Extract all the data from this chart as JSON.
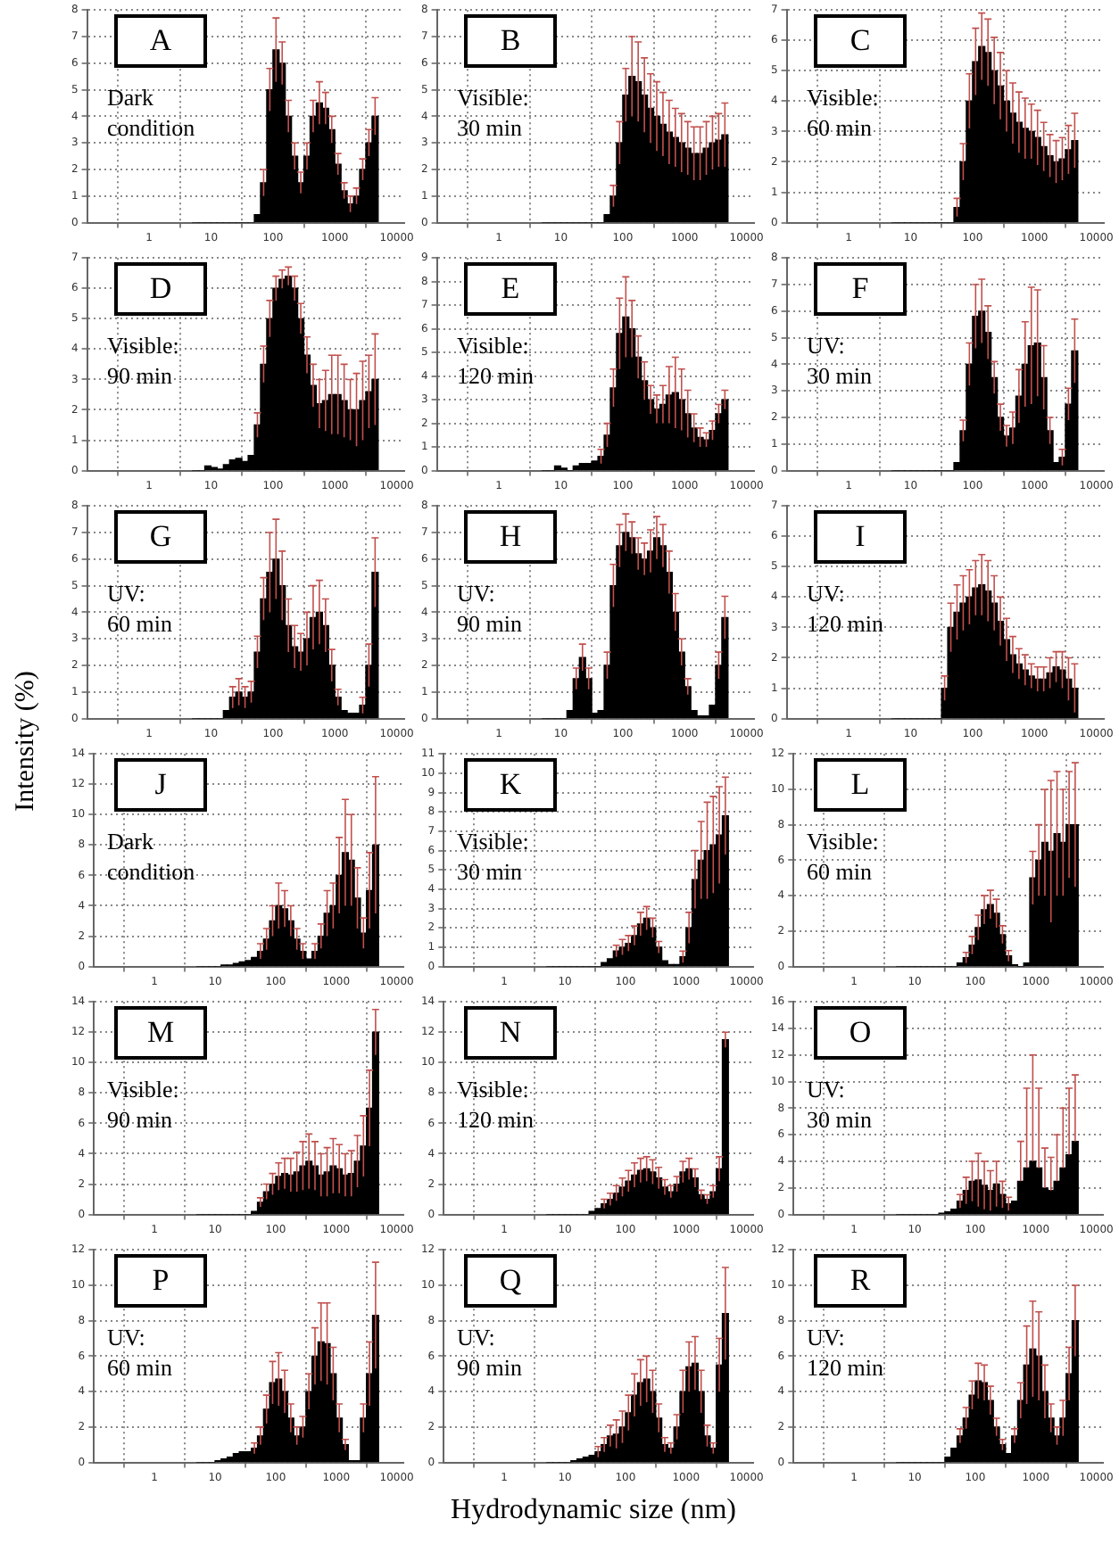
{
  "chart_data": [
    {
      "type": "histogram",
      "title": "A",
      "annotations": [
        "Dark\ncondition"
      ],
      "log": "x",
      "grid": true,
      "color": "#000000",
      "xlim": [
        0.1,
        13000
      ],
      "xticks": [
        1,
        10,
        100,
        1000,
        10000
      ],
      "ylim": [
        0,
        8
      ],
      "yticks": [
        0,
        1,
        2,
        3,
        4,
        5,
        6,
        7,
        8
      ],
      "bins": [
        5.01,
        6.31,
        7.94,
        10,
        12.6,
        15.8,
        20,
        25.1,
        31.6,
        39.8,
        50.1,
        63.1,
        79.4,
        100,
        126,
        158,
        200,
        251,
        316,
        398,
        501,
        631,
        794,
        1000,
        1259,
        1585,
        1995,
        2512,
        3162,
        3981,
        5012
      ],
      "values": [
        0,
        0,
        0,
        0,
        0,
        0,
        0,
        0,
        0,
        0,
        0.3,
        1.5,
        5,
        6.5,
        6,
        4,
        2.5,
        1.5,
        2.5,
        4,
        4.5,
        4.3,
        3.5,
        2.2,
        1.2,
        0.7,
        1,
        2,
        3,
        4
      ],
      "errors": [
        null,
        null,
        null,
        null,
        null,
        null,
        null,
        null,
        null,
        null,
        null,
        0.5,
        0.8,
        1.2,
        0.8,
        0.6,
        0.5,
        0.4,
        0.5,
        0.6,
        0.8,
        0.6,
        0.5,
        0.4,
        0.3,
        0.3,
        0.3,
        0.4,
        0.5,
        0.7
      ]
    },
    {
      "type": "histogram",
      "title": "B",
      "annotations": [
        "Visible:\n30 min"
      ],
      "log": "x",
      "grid": true,
      "color": "#000000",
      "xlim": [
        0.1,
        13000
      ],
      "xticks": [
        1,
        10,
        100,
        1000,
        10000
      ],
      "ylim": [
        0,
        8
      ],
      "yticks": [
        0,
        1,
        2,
        3,
        4,
        5,
        6,
        7,
        8
      ],
      "bins": [
        5.01,
        6.31,
        7.94,
        10,
        12.6,
        15.8,
        20,
        25.1,
        31.6,
        39.8,
        50.1,
        63.1,
        79.4,
        100,
        126,
        158,
        200,
        251,
        316,
        398,
        501,
        631,
        794,
        1000,
        1259,
        1585,
        1995,
        2512,
        3162,
        3981,
        5012
      ],
      "values": [
        0,
        0,
        0,
        0,
        0,
        0,
        0,
        0,
        0,
        0,
        0.3,
        1,
        3,
        4.8,
        5.5,
        5.3,
        4.8,
        4.3,
        4,
        3.7,
        3.4,
        3.2,
        3,
        2.8,
        2.6,
        2.6,
        2.8,
        3,
        3.1,
        3.3
      ],
      "errors": [
        null,
        null,
        null,
        null,
        null,
        null,
        null,
        null,
        null,
        null,
        null,
        0.4,
        0.8,
        1,
        1.5,
        1.5,
        1.4,
        1.3,
        1.3,
        1.2,
        1.2,
        1.1,
        1.1,
        1,
        1,
        1,
        1,
        1,
        1,
        1.2
      ]
    },
    {
      "type": "histogram",
      "title": "C",
      "annotations": [
        "Visible:\n60 min"
      ],
      "log": "x",
      "grid": true,
      "color": "#000000",
      "xlim": [
        0.1,
        13000
      ],
      "xticks": [
        1,
        10,
        100,
        1000,
        10000
      ],
      "ylim": [
        0,
        7
      ],
      "yticks": [
        0,
        1,
        2,
        3,
        4,
        5,
        6,
        7
      ],
      "bins": [
        5.01,
        6.31,
        7.94,
        10,
        12.6,
        15.8,
        20,
        25.1,
        31.6,
        39.8,
        50.1,
        63.1,
        79.4,
        100,
        126,
        158,
        200,
        251,
        316,
        398,
        501,
        631,
        794,
        1000,
        1259,
        1585,
        1995,
        2512,
        3162,
        3981,
        5012
      ],
      "values": [
        0,
        0,
        0,
        0,
        0,
        0,
        0,
        0,
        0,
        0,
        0.5,
        2,
        4,
        5.3,
        5.8,
        5.6,
        5,
        4.5,
        4,
        3.6,
        3.3,
        3.1,
        3,
        2.8,
        2.5,
        2.2,
        2,
        2.1,
        2.4,
        2.7
      ],
      "errors": [
        null,
        null,
        null,
        null,
        null,
        null,
        null,
        null,
        null,
        null,
        0.3,
        0.6,
        0.9,
        1.1,
        1.1,
        1.1,
        1.1,
        1.1,
        1,
        1,
        1,
        1,
        0.9,
        0.9,
        0.8,
        0.7,
        0.7,
        0.7,
        0.8,
        0.9
      ]
    },
    {
      "type": "histogram",
      "title": "D",
      "annotations": [
        "Visible:\n90 min"
      ],
      "log": "x",
      "grid": true,
      "color": "#000000",
      "xlim": [
        0.1,
        13000
      ],
      "xticks": [
        1,
        10,
        100,
        1000,
        10000
      ],
      "ylim": [
        0,
        7
      ],
      "yticks": [
        0,
        1,
        2,
        3,
        4,
        5,
        6,
        7
      ],
      "bins": [
        5.01,
        6.31,
        7.94,
        10,
        12.6,
        15.8,
        20,
        25.1,
        31.6,
        39.8,
        50.1,
        63.1,
        79.4,
        100,
        126,
        158,
        200,
        251,
        316,
        398,
        501,
        631,
        794,
        1000,
        1259,
        1585,
        1995,
        2512,
        3162,
        3981,
        5012
      ],
      "values": [
        0,
        0,
        0.15,
        0.1,
        0.05,
        0.2,
        0.35,
        0.4,
        0.3,
        0.5,
        1.5,
        3.5,
        5,
        6,
        6.3,
        6.4,
        6,
        5,
        3.8,
        2.8,
        2.2,
        2.3,
        2.5,
        2.5,
        2.3,
        2,
        2,
        2.3,
        2.6,
        3
      ],
      "errors": [
        null,
        null,
        null,
        null,
        null,
        null,
        null,
        null,
        null,
        null,
        0.4,
        0.6,
        0.6,
        0.4,
        0.3,
        0.3,
        0.4,
        0.5,
        0.6,
        0.7,
        0.8,
        1,
        1.3,
        1.3,
        1.2,
        1,
        1.2,
        1.3,
        1.2,
        1.5
      ]
    },
    {
      "type": "histogram",
      "title": "E",
      "annotations": [
        "Visible:\n120 min"
      ],
      "log": "x",
      "grid": true,
      "color": "#000000",
      "xlim": [
        0.1,
        13000
      ],
      "xticks": [
        1,
        10,
        100,
        1000,
        10000
      ],
      "ylim": [
        0,
        9
      ],
      "yticks": [
        0,
        1,
        2,
        3,
        4,
        5,
        6,
        7,
        8,
        9
      ],
      "bins": [
        5.01,
        6.31,
        7.94,
        10,
        12.6,
        15.8,
        20,
        25.1,
        31.6,
        39.8,
        50.1,
        63.1,
        79.4,
        100,
        126,
        158,
        200,
        251,
        316,
        398,
        501,
        631,
        794,
        1000,
        1259,
        1585,
        1995,
        2512,
        3162,
        3981,
        5012
      ],
      "values": [
        0,
        0,
        0.2,
        0.1,
        0,
        0.2,
        0.3,
        0.3,
        0.4,
        0.6,
        1.5,
        3.5,
        5.8,
        6.5,
        6,
        4.8,
        3.8,
        3,
        2.6,
        2.8,
        3.2,
        3.3,
        3,
        2.4,
        1.8,
        1.4,
        1.3,
        1.7,
        2.4,
        3
      ],
      "errors": [
        null,
        null,
        null,
        null,
        null,
        null,
        null,
        null,
        null,
        0.3,
        0.5,
        0.8,
        1.5,
        1.7,
        1.2,
        0.9,
        0.8,
        0.6,
        0.6,
        0.8,
        1.2,
        1.5,
        1.3,
        1,
        0.6,
        0.4,
        0.3,
        0.4,
        0.4,
        0.4
      ]
    },
    {
      "type": "histogram",
      "title": "F",
      "annotations": [
        "UV:\n30 min"
      ],
      "log": "x",
      "grid": true,
      "color": "#000000",
      "xlim": [
        0.1,
        13000
      ],
      "xticks": [
        1,
        10,
        100,
        1000,
        10000
      ],
      "ylim": [
        0,
        8
      ],
      "yticks": [
        0,
        1,
        2,
        3,
        4,
        5,
        6,
        7,
        8
      ],
      "bins": [
        5.01,
        6.31,
        7.94,
        10,
        12.6,
        15.8,
        20,
        25.1,
        31.6,
        39.8,
        50.1,
        63.1,
        79.4,
        100,
        126,
        158,
        200,
        251,
        316,
        398,
        501,
        631,
        794,
        1000,
        1259,
        1585,
        1995,
        2512,
        3162,
        3981,
        5012
      ],
      "values": [
        0,
        0,
        0,
        0,
        0,
        0,
        0,
        0,
        0,
        0,
        0.3,
        1.5,
        4,
        5.8,
        6,
        5.2,
        3.5,
        2,
        1.3,
        1.6,
        2.8,
        4,
        4.7,
        4.8,
        3.5,
        1.5,
        0.3,
        0.5,
        2.5,
        4.5
      ],
      "errors": [
        null,
        null,
        null,
        null,
        null,
        null,
        null,
        null,
        null,
        null,
        null,
        0.4,
        0.8,
        1.2,
        1.2,
        1,
        0.6,
        0.5,
        0.4,
        0.6,
        1,
        1.6,
        2.2,
        2,
        1.2,
        0.5,
        null,
        0.3,
        0.6,
        1.2
      ]
    },
    {
      "type": "histogram",
      "title": "G",
      "annotations": [
        "UV:\n60 min"
      ],
      "log": "x",
      "grid": true,
      "color": "#000000",
      "xlim": [
        0.1,
        13000
      ],
      "xticks": [
        1,
        10,
        100,
        1000,
        10000
      ],
      "ylim": [
        0,
        8
      ],
      "yticks": [
        0,
        1,
        2,
        3,
        4,
        5,
        6,
        7,
        8
      ],
      "bins": [
        5.01,
        6.31,
        7.94,
        10,
        12.6,
        15.8,
        20,
        25.1,
        31.6,
        39.8,
        50.1,
        63.1,
        79.4,
        100,
        126,
        158,
        200,
        251,
        316,
        398,
        501,
        631,
        794,
        1000,
        1259,
        1585,
        1995,
        2512,
        3162,
        3981,
        5012
      ],
      "values": [
        0,
        0,
        0,
        0,
        0,
        0.3,
        0.8,
        1,
        0.8,
        1,
        2.5,
        4.5,
        5.5,
        6,
        5,
        3.5,
        2.7,
        2.5,
        3,
        3.8,
        4,
        3.5,
        2,
        0.8,
        0.3,
        0.2,
        0.2,
        0.5,
        2,
        5.5
      ],
      "errors": [
        null,
        null,
        null,
        null,
        null,
        null,
        0.4,
        0.5,
        0.4,
        0.4,
        0.6,
        0.8,
        1.5,
        1.5,
        1.3,
        1,
        0.8,
        0.7,
        1,
        1.2,
        1.2,
        1,
        0.6,
        0.3,
        null,
        null,
        null,
        0.3,
        0.8,
        1.3
      ]
    },
    {
      "type": "histogram",
      "title": "H",
      "annotations": [
        "UV:\n90 min"
      ],
      "log": "x",
      "grid": true,
      "color": "#000000",
      "xlim": [
        0.1,
        13000
      ],
      "xticks": [
        1,
        10,
        100,
        1000,
        10000
      ],
      "ylim": [
        0,
        8
      ],
      "yticks": [
        0,
        1,
        2,
        3,
        4,
        5,
        6,
        7,
        8
      ],
      "bins": [
        5.01,
        6.31,
        7.94,
        10,
        12.6,
        15.8,
        20,
        25.1,
        31.6,
        39.8,
        50.1,
        63.1,
        79.4,
        100,
        126,
        158,
        200,
        251,
        316,
        398,
        501,
        631,
        794,
        1000,
        1259,
        1585,
        1995,
        2512,
        3162,
        3981,
        5012
      ],
      "values": [
        0,
        0,
        0,
        0,
        0.3,
        1.5,
        2.3,
        1.5,
        0.2,
        0.3,
        2,
        5,
        6.5,
        7,
        6.8,
        6.2,
        6,
        6.3,
        6.8,
        6.5,
        5.5,
        4,
        2.5,
        1.2,
        0.3,
        0.1,
        0.1,
        0.5,
        2,
        3.8
      ],
      "errors": [
        null,
        null,
        null,
        null,
        null,
        0.4,
        0.5,
        0.4,
        null,
        null,
        0.5,
        0.8,
        0.8,
        0.7,
        0.6,
        0.6,
        0.6,
        0.8,
        0.8,
        0.8,
        0.8,
        0.7,
        0.5,
        0.3,
        null,
        null,
        null,
        null,
        0.5,
        0.8
      ]
    },
    {
      "type": "histogram",
      "title": "I",
      "annotations": [
        "UV:\n120 min"
      ],
      "log": "x",
      "grid": true,
      "color": "#000000",
      "xlim": [
        0.1,
        13000
      ],
      "xticks": [
        1,
        10,
        100,
        1000,
        10000
      ],
      "ylim": [
        0,
        7
      ],
      "yticks": [
        0,
        1,
        2,
        3,
        4,
        5,
        6,
        7
      ],
      "bins": [
        5.01,
        6.31,
        7.94,
        10,
        12.6,
        15.8,
        20,
        25.1,
        31.6,
        39.8,
        50.1,
        63.1,
        79.4,
        100,
        126,
        158,
        200,
        251,
        316,
        398,
        501,
        631,
        794,
        1000,
        1259,
        1585,
        1995,
        2512,
        3162,
        3981,
        5012
      ],
      "values": [
        0,
        0,
        0,
        0,
        0,
        0,
        0,
        0,
        1,
        3,
        3.5,
        3.8,
        4,
        4.3,
        4.4,
        4.2,
        3.8,
        3.2,
        2.6,
        2.1,
        1.8,
        1.6,
        1.4,
        1.3,
        1.3,
        1.5,
        1.7,
        1.6,
        1.3,
        1
      ],
      "errors": [
        null,
        null,
        null,
        null,
        null,
        null,
        null,
        null,
        0.4,
        0.8,
        0.9,
        0.9,
        0.9,
        0.9,
        1,
        1,
        0.9,
        0.8,
        0.7,
        0.6,
        0.5,
        0.5,
        0.4,
        0.4,
        0.4,
        0.5,
        0.5,
        0.6,
        0.7,
        0.8
      ]
    },
    {
      "type": "histogram",
      "title": "J",
      "annotations": [
        "Dark\ncondition"
      ],
      "ylabel": "Intensity (%)",
      "log": "x",
      "grid": true,
      "color": "#000000",
      "xlim": [
        0.1,
        13000
      ],
      "xticks": [
        1,
        10,
        100,
        1000,
        10000
      ],
      "ylim": [
        0,
        14
      ],
      "yticks": [
        0,
        2,
        4,
        6,
        8,
        10,
        12,
        14
      ],
      "bins": [
        5.01,
        6.31,
        7.94,
        10,
        12.6,
        15.8,
        20,
        25.1,
        31.6,
        39.8,
        50.1,
        63.1,
        79.4,
        100,
        126,
        158,
        200,
        251,
        316,
        398,
        501,
        631,
        794,
        1000,
        1259,
        1585,
        1995,
        2512,
        3162,
        3981,
        5012
      ],
      "values": [
        0,
        0,
        0,
        0,
        0.1,
        0.1,
        0.2,
        0.3,
        0.4,
        0.6,
        1,
        1.8,
        3,
        4,
        3.8,
        3,
        1.8,
        1,
        0.5,
        1,
        2,
        3.5,
        4,
        6,
        7.5,
        7,
        4.5,
        2.2,
        5,
        8
      ],
      "errors": [
        null,
        null,
        null,
        null,
        null,
        null,
        null,
        null,
        null,
        null,
        0.5,
        0.7,
        1,
        1.5,
        1.2,
        1,
        0.7,
        0.5,
        null,
        0.5,
        0.8,
        1.5,
        1.5,
        2.5,
        3.5,
        3,
        2,
        1,
        2.5,
        4.5
      ]
    },
    {
      "type": "histogram",
      "title": "K",
      "annotations": [
        "Visible:\n30 min"
      ],
      "log": "x",
      "grid": true,
      "color": "#000000",
      "xlim": [
        0.1,
        13000
      ],
      "xticks": [
        1,
        10,
        100,
        1000,
        10000
      ],
      "ylim": [
        0,
        11
      ],
      "yticks": [
        0,
        1,
        2,
        3,
        4,
        5,
        6,
        7,
        8,
        9,
        10,
        11
      ],
      "bins": [
        5.01,
        6.31,
        7.94,
        10,
        12.6,
        15.8,
        20,
        25.1,
        31.6,
        39.8,
        50.1,
        63.1,
        79.4,
        100,
        126,
        158,
        200,
        251,
        316,
        398,
        501,
        631,
        794,
        1000,
        1259,
        1585,
        1995,
        2512,
        3162,
        3981,
        5012
      ],
      "values": [
        0,
        0,
        0,
        0,
        0,
        0,
        0,
        0,
        0,
        0.2,
        0.4,
        0.8,
        1,
        1.2,
        1.6,
        2.2,
        2.5,
        2,
        1,
        0.3,
        0.1,
        0.1,
        0.5,
        2,
        4.5,
        5.5,
        6,
        6.3,
        6.8,
        7.8
      ],
      "errors": [
        null,
        null,
        null,
        null,
        null,
        null,
        null,
        null,
        null,
        null,
        null,
        0.3,
        0.4,
        0.4,
        0.5,
        0.6,
        0.6,
        0.5,
        0.3,
        null,
        null,
        null,
        0.3,
        0.8,
        1.5,
        2,
        2.5,
        2.5,
        2.5,
        2
      ]
    },
    {
      "type": "histogram",
      "title": "L",
      "annotations": [
        "Visible:\n60 min"
      ],
      "log": "x",
      "grid": true,
      "color": "#000000",
      "xlim": [
        0.1,
        13000
      ],
      "xticks": [
        1,
        10,
        100,
        1000,
        10000
      ],
      "ylim": [
        0,
        12
      ],
      "yticks": [
        0,
        2,
        4,
        6,
        8,
        10,
        12
      ],
      "bins": [
        5.01,
        6.31,
        7.94,
        10,
        12.6,
        15.8,
        20,
        25.1,
        31.6,
        39.8,
        50.1,
        63.1,
        79.4,
        100,
        126,
        158,
        200,
        251,
        316,
        398,
        501,
        631,
        794,
        1000,
        1259,
        1585,
        1995,
        2512,
        3162,
        3981,
        5012
      ],
      "values": [
        0,
        0,
        0,
        0,
        0,
        0,
        0,
        0,
        0,
        0,
        0.2,
        0.5,
        1.2,
        2.2,
        3.2,
        3.5,
        3,
        1.8,
        0.6,
        0.1,
        0,
        0.2,
        5,
        6,
        7,
        6.5,
        7.5,
        7,
        8,
        8
      ],
      "errors": [
        null,
        null,
        null,
        null,
        null,
        null,
        null,
        null,
        null,
        null,
        null,
        0.3,
        0.5,
        0.7,
        0.8,
        0.8,
        0.8,
        0.5,
        0.3,
        null,
        null,
        null,
        1.5,
        2,
        3,
        4,
        3.5,
        3,
        3,
        3.5
      ]
    },
    {
      "type": "histogram",
      "title": "M",
      "annotations": [
        "Visible:\n90 min"
      ],
      "log": "x",
      "grid": true,
      "color": "#000000",
      "xlim": [
        0.1,
        13000
      ],
      "xticks": [
        1,
        10,
        100,
        1000,
        10000
      ],
      "ylim": [
        0,
        14
      ],
      "yticks": [
        0,
        2,
        4,
        6,
        8,
        10,
        12,
        14
      ],
      "bins": [
        5.01,
        6.31,
        7.94,
        10,
        12.6,
        15.8,
        20,
        25.1,
        31.6,
        39.8,
        50.1,
        63.1,
        79.4,
        100,
        126,
        158,
        200,
        251,
        316,
        398,
        501,
        631,
        794,
        1000,
        1259,
        1585,
        1995,
        2512,
        3162,
        3981,
        5012
      ],
      "values": [
        0,
        0,
        0,
        0,
        0,
        0,
        0,
        0,
        0,
        0.2,
        0.8,
        1.5,
        2,
        2.5,
        2.7,
        2.6,
        2.8,
        3.2,
        3.5,
        3.2,
        2.6,
        2.8,
        3.2,
        3,
        2.6,
        2.7,
        3.5,
        4.5,
        7,
        12
      ],
      "errors": [
        null,
        null,
        null,
        null,
        null,
        null,
        null,
        null,
        null,
        null,
        0.3,
        0.5,
        0.7,
        0.9,
        1,
        1.1,
        1.3,
        1.6,
        1.8,
        1.6,
        1.4,
        1.6,
        1.8,
        1.6,
        1.4,
        1.5,
        1.7,
        2,
        2.5,
        1.5
      ]
    },
    {
      "type": "histogram",
      "title": "N",
      "annotations": [
        "Visible:\n120 min"
      ],
      "log": "x",
      "grid": true,
      "color": "#000000",
      "xlim": [
        0.1,
        13000
      ],
      "xticks": [
        1,
        10,
        100,
        1000,
        10000
      ],
      "ylim": [
        0,
        14
      ],
      "yticks": [
        0,
        2,
        4,
        6,
        8,
        10,
        12,
        14
      ],
      "bins": [
        5.01,
        6.31,
        7.94,
        10,
        12.6,
        15.8,
        20,
        25.1,
        31.6,
        39.8,
        50.1,
        63.1,
        79.4,
        100,
        126,
        158,
        200,
        251,
        316,
        398,
        501,
        631,
        794,
        1000,
        1259,
        1585,
        1995,
        2512,
        3162,
        3981,
        5012
      ],
      "values": [
        0,
        0,
        0,
        0,
        0,
        0,
        0,
        0.2,
        0.4,
        0.7,
        1,
        1.4,
        1.8,
        2.2,
        2.6,
        2.9,
        3,
        2.8,
        2.4,
        1.8,
        1.5,
        2,
        2.8,
        3,
        2.4,
        1.3,
        1,
        1.5,
        3,
        11.5
      ],
      "errors": [
        null,
        null,
        null,
        null,
        null,
        null,
        null,
        null,
        null,
        0.3,
        0.4,
        0.5,
        0.6,
        0.7,
        0.8,
        0.8,
        0.8,
        0.8,
        0.7,
        0.5,
        0.4,
        0.5,
        0.7,
        0.7,
        0.6,
        0.3,
        0.3,
        0.4,
        0.8,
        0.5
      ]
    },
    {
      "type": "histogram",
      "title": "O",
      "annotations": [
        "UV:\n30 min"
      ],
      "log": "x",
      "grid": true,
      "color": "#000000",
      "xlim": [
        0.1,
        13000
      ],
      "xticks": [
        1,
        10,
        100,
        1000,
        10000
      ],
      "ylim": [
        0,
        16
      ],
      "yticks": [
        0,
        2,
        4,
        6,
        8,
        10,
        12,
        14,
        16
      ],
      "bins": [
        5.01,
        6.31,
        7.94,
        10,
        12.6,
        15.8,
        20,
        25.1,
        31.6,
        39.8,
        50.1,
        63.1,
        79.4,
        100,
        126,
        158,
        200,
        251,
        316,
        398,
        501,
        631,
        794,
        1000,
        1259,
        1585,
        1995,
        2512,
        3162,
        3981,
        5012
      ],
      "values": [
        0,
        0,
        0,
        0,
        0,
        0,
        0,
        0.1,
        0.2,
        0.4,
        1,
        1.8,
        2.5,
        2.6,
        2.2,
        1.8,
        2.3,
        1.5,
        0.8,
        1,
        2.5,
        3.5,
        4,
        3.5,
        2,
        1.8,
        2.5,
        3.5,
        4.5,
        5.5
      ],
      "errors": [
        null,
        null,
        null,
        null,
        null,
        null,
        null,
        null,
        null,
        null,
        0.5,
        1,
        1.5,
        2,
        1.8,
        1.5,
        1.7,
        1,
        0.5,
        null,
        [
          2.5,
          5.5
        ],
        [
          3.5,
          9.5
        ],
        [
          4,
          12
        ],
        [
          3.5,
          9.5
        ],
        [
          2,
          5
        ],
        [
          1.8,
          4.3
        ],
        [
          2.5,
          6
        ],
        [
          3.5,
          8
        ],
        [
          4.5,
          9.5
        ],
        [
          5.5,
          10.5
        ]
      ]
    },
    {
      "type": "histogram",
      "title": "P",
      "annotations": [
        "UV:\n60 min"
      ],
      "log": "x",
      "grid": true,
      "color": "#000000",
      "xlim": [
        0.1,
        13000
      ],
      "xticks": [
        1,
        10,
        100,
        1000,
        10000
      ],
      "ylim": [
        0,
        12
      ],
      "yticks": [
        0,
        2,
        4,
        6,
        8,
        10,
        12
      ],
      "bins": [
        5.01,
        6.31,
        7.94,
        10,
        12.6,
        15.8,
        20,
        25.1,
        31.6,
        39.8,
        50.1,
        63.1,
        79.4,
        100,
        126,
        158,
        200,
        251,
        316,
        398,
        501,
        631,
        794,
        1000,
        1259,
        1585,
        1995,
        2512,
        3162,
        3981,
        5012
      ],
      "values": [
        0,
        0,
        0,
        0.1,
        0.2,
        0.3,
        0.5,
        0.6,
        0.6,
        0.8,
        1.5,
        3,
        4.5,
        4.7,
        4,
        2.5,
        1.5,
        2,
        4,
        6,
        6.8,
        6.7,
        5,
        2.5,
        1,
        0.1,
        0.1,
        2.5,
        5,
        8.3
      ],
      "errors": [
        null,
        null,
        null,
        null,
        null,
        null,
        null,
        null,
        null,
        0.3,
        0.5,
        0.8,
        1.2,
        1.5,
        1.2,
        0.8,
        0.5,
        0.6,
        1,
        1.6,
        2.2,
        2.3,
        1.5,
        0.8,
        0.3,
        null,
        null,
        0.8,
        1.8,
        3
      ]
    },
    {
      "type": "histogram",
      "title": "Q",
      "annotations": [
        "UV:\n90 min"
      ],
      "xlabel": "Hydrodynamic size (nm)",
      "log": "x",
      "grid": true,
      "color": "#000000",
      "xlim": [
        0.1,
        13000
      ],
      "xticks": [
        1,
        10,
        100,
        1000,
        10000
      ],
      "ylim": [
        0,
        12
      ],
      "yticks": [
        0,
        2,
        4,
        6,
        8,
        10,
        12
      ],
      "bins": [
        5.01,
        6.31,
        7.94,
        10,
        12.6,
        15.8,
        20,
        25.1,
        31.6,
        39.8,
        50.1,
        63.1,
        79.4,
        100,
        126,
        158,
        200,
        251,
        316,
        398,
        501,
        631,
        794,
        1000,
        1259,
        1585,
        1995,
        2512,
        3162,
        3981,
        5012
      ],
      "values": [
        0,
        0,
        0,
        0,
        0.1,
        0.2,
        0.3,
        0.4,
        0.6,
        1,
        1.5,
        1.6,
        2,
        2.8,
        3.8,
        4.5,
        4.7,
        4,
        2.5,
        1,
        0.8,
        2,
        4,
        5.4,
        5.6,
        4,
        1.5,
        0.8,
        5.5,
        8.4
      ],
      "errors": [
        null,
        null,
        null,
        null,
        null,
        null,
        null,
        null,
        0.3,
        0.4,
        0.6,
        0.8,
        0.9,
        1,
        1.2,
        1.3,
        1.3,
        1.2,
        0.8,
        0.4,
        0.3,
        0.7,
        1.2,
        1.4,
        1.5,
        1.2,
        0.6,
        0.3,
        1.5,
        2.6
      ]
    },
    {
      "type": "histogram",
      "title": "R",
      "annotations": [
        "UV:\n120 min"
      ],
      "log": "x",
      "grid": true,
      "color": "#000000",
      "xlim": [
        0.1,
        13000
      ],
      "xticks": [
        1,
        10,
        100,
        1000,
        10000
      ],
      "ylim": [
        0,
        12
      ],
      "yticks": [
        0,
        2,
        4,
        6,
        8,
        10,
        12
      ],
      "bins": [
        5.01,
        6.31,
        7.94,
        10,
        12.6,
        15.8,
        20,
        25.1,
        31.6,
        39.8,
        50.1,
        63.1,
        79.4,
        100,
        126,
        158,
        200,
        251,
        316,
        398,
        501,
        631,
        794,
        1000,
        1259,
        1585,
        1995,
        2512,
        3162,
        3981,
        5012
      ],
      "values": [
        0,
        0,
        0,
        0,
        0,
        0,
        0,
        0,
        0.3,
        0.8,
        1.5,
        2.5,
        3.8,
        4.6,
        4.5,
        3.5,
        2,
        1,
        0.5,
        1.5,
        3.5,
        5.5,
        6.4,
        6,
        4,
        2.5,
        1.5,
        2.5,
        5,
        8
      ],
      "errors": [
        null,
        null,
        null,
        null,
        null,
        null,
        null,
        null,
        null,
        null,
        0.4,
        0.6,
        0.8,
        1,
        1,
        0.8,
        0.5,
        0.3,
        null,
        0.4,
        1,
        2.2,
        2.7,
        2.5,
        1.5,
        0.8,
        0.5,
        1,
        1.5,
        2
      ]
    }
  ]
}
